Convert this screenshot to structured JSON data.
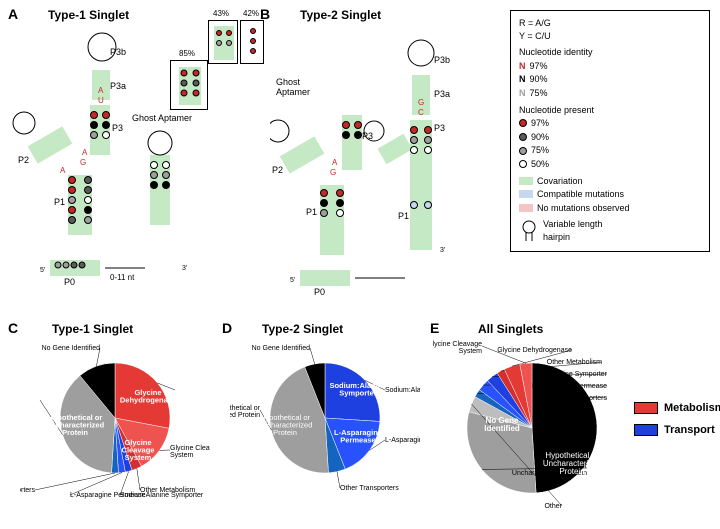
{
  "panels": {
    "A": {
      "label": "A",
      "title": "Type-1 Singlet"
    },
    "B": {
      "label": "B",
      "title": "Type-2 Singlet"
    },
    "C": {
      "label": "C",
      "title": "Type-1 Singlet"
    },
    "D": {
      "label": "D",
      "title": "Type-2 Singlet"
    },
    "E": {
      "label": "E",
      "title": "All Singlets"
    }
  },
  "legend": {
    "iupac1": "R = A/G",
    "iupac2": "Y = C/U",
    "identity_title": "Nucleotide identity",
    "identity_levels": [
      {
        "label": "97%",
        "color": "#c62828"
      },
      {
        "label": "90%",
        "color": "#000000"
      },
      {
        "label": "75%",
        "color": "#9e9e9e"
      }
    ],
    "present_title": "Nucleotide present",
    "present_levels": [
      {
        "label": "97%",
        "fill": "#c62828"
      },
      {
        "label": "90%",
        "fill": "#5a5a5a"
      },
      {
        "label": "75%",
        "fill": "#9e9e9e"
      },
      {
        "label": "50%",
        "fill": "#ffffff"
      }
    ],
    "struct": [
      {
        "label": "Covariation",
        "color": "#c5e8c5"
      },
      {
        "label": "Compatible mutations",
        "color": "#c5d8f0"
      },
      {
        "label": "No mutations observed",
        "color": "#f5c5c5"
      }
    ],
    "hairpin": "Variable length hairpin"
  },
  "rna": {
    "ghost_aptamer": "Ghost Aptamer",
    "stems": {
      "P0": "P0",
      "P1": "P1",
      "P2": "P2",
      "P3": "P3",
      "P3a": "P3a",
      "P3b": "P3b"
    },
    "five_prime": "5'",
    "three_prime": "3'",
    "linker": "0-11 nt",
    "callout_pcts": {
      "a": "85%",
      "b": "43%",
      "c": "42%"
    }
  },
  "pies": {
    "C": {
      "slices": [
        {
          "label": "Glycine Dehydrogenase",
          "value": 28,
          "color": "#e53935"
        },
        {
          "label": "Glycine Cleavage System",
          "value": 14,
          "color": "#ef5350"
        },
        {
          "label": "Other Metabolism",
          "value": 3,
          "color": "#d32f2f"
        },
        {
          "label": "Sodium:Alanine Symporter",
          "value": 2,
          "color": "#1e40e0"
        },
        {
          "label": "L-Asparagine Permease",
          "value": 2,
          "color": "#2952ff"
        },
        {
          "label": "Other Transporters",
          "value": 2,
          "color": "#1565c0"
        },
        {
          "label": "Hypothetical or Uncharacterized Protein",
          "value": 38,
          "color": "#9e9e9e"
        },
        {
          "label": "No Gene Identified",
          "value": 11,
          "color": "#000000"
        }
      ]
    },
    "D": {
      "slices": [
        {
          "label": "Sodium:Alanine Symporter",
          "value": 26,
          "color": "#1e40e0"
        },
        {
          "label": "L-Asparagine Permease",
          "value": 18,
          "color": "#2952ff"
        },
        {
          "label": "Other Transporters",
          "value": 5,
          "color": "#1565c0"
        },
        {
          "label": "Hypothetical or Uncharacterized Protein",
          "value": 45,
          "color": "#9e9e9e"
        },
        {
          "label": "No Gene Identified",
          "value": 6,
          "color": "#000000"
        }
      ]
    },
    "E": {
      "slices": [
        {
          "label": "No Gene Identified",
          "value": 49,
          "color": "#000000"
        },
        {
          "label": "Hypothetical or Uncharacterized Protein",
          "value": 30,
          "color": "#9e9e9e"
        },
        {
          "label": "Other",
          "value": 4,
          "color": "#bdbdbd"
        },
        {
          "label": "Other Transporters",
          "value": 2,
          "color": "#1565c0"
        },
        {
          "label": "L-Asparagine Permease",
          "value": 3,
          "color": "#2952ff"
        },
        {
          "label": "Sodium:Alanine Symporter",
          "value": 3,
          "color": "#1e40e0"
        },
        {
          "label": "Other Metabolism",
          "value": 2,
          "color": "#d32f2f"
        },
        {
          "label": "Glycine Dehydrogenase",
          "value": 4,
          "color": "#e53935"
        },
        {
          "label": "Glycine Cleavage System",
          "value": 3,
          "color": "#ef5350"
        }
      ]
    }
  },
  "category_legend": {
    "metabolism": {
      "label": "Metabolism",
      "color": "#e53935"
    },
    "transport": {
      "label": "Transport",
      "color": "#1e40e0"
    }
  },
  "colors": {
    "covariation": "#c5e8c5",
    "compatible": "#c5d8f0",
    "nomut": "#f5c5c5",
    "red_nt": "#c62828",
    "gray_nt": "#9e9e9e"
  }
}
